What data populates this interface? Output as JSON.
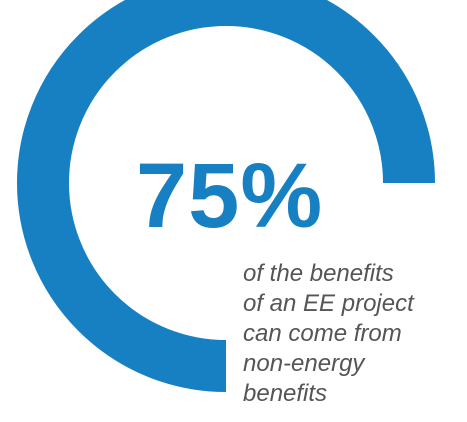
{
  "stat": {
    "value": "75%",
    "fraction": 0.75
  },
  "caption": {
    "lines": [
      "of the benefits",
      "of an EE project",
      "can come from",
      "non-energy",
      "benefits"
    ]
  },
  "colors": {
    "accent": "#1680c2",
    "text": "#555555",
    "background": "#ffffff"
  }
}
